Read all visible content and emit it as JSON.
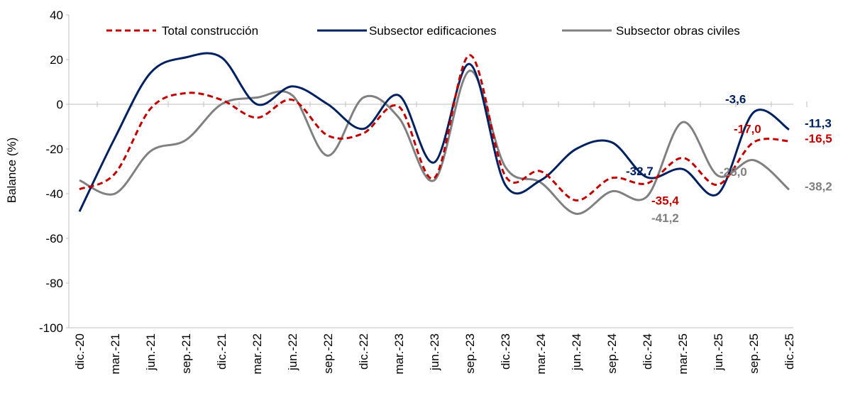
{
  "chart_data": {
    "type": "line",
    "y_label": "Balance (%)",
    "categories": [
      "dic.-20",
      "mar.-21",
      "jun.-21",
      "sep.-21",
      "dic.-21",
      "mar.-22",
      "jun.-22",
      "sep.-22",
      "dic.-22",
      "mar.-23",
      "jun.-23",
      "sep.-23",
      "dic.-23",
      "mar.-24",
      "jun.-24",
      "sep.-24",
      "dic.-24",
      "mar.-25",
      "jun.-25",
      "sep.-25",
      "dic.-25"
    ],
    "ylim": [
      -100,
      40
    ],
    "yticks": [
      -100,
      -80,
      -60,
      -40,
      -20,
      0,
      20,
      40
    ],
    "legend": "top",
    "series": [
      {
        "name": "Total construcción",
        "color": "#c00000",
        "dashed": true,
        "values": [
          -38,
          -31,
          -2,
          5,
          2,
          -6,
          2,
          -14,
          -13,
          -1,
          -33,
          22,
          -32,
          -30,
          -43,
          -33,
          -35.4,
          -24,
          -36,
          -17.0,
          -16.5
        ],
        "value_labels": [
          null,
          null,
          null,
          null,
          null,
          null,
          null,
          null,
          null,
          null,
          null,
          null,
          null,
          null,
          null,
          null,
          "-35,4",
          null,
          null,
          "-17,0",
          "-16,5"
        ]
      },
      {
        "name": "Subsector edificaciones",
        "color": "#002060",
        "dashed": false,
        "values": [
          -48,
          -15,
          14,
          21,
          21,
          0,
          8,
          0,
          -11,
          4,
          -26,
          18,
          -36,
          -34,
          -20,
          -17,
          -32.7,
          -29,
          -40,
          -3.6,
          -11.3
        ],
        "value_labels": [
          null,
          null,
          null,
          null,
          null,
          null,
          null,
          null,
          null,
          null,
          null,
          null,
          null,
          null,
          null,
          null,
          "-32,7",
          null,
          null,
          "-3,6",
          "-11,3"
        ]
      },
      {
        "name": "Subsector obras civiles",
        "color": "#808080",
        "dashed": false,
        "values": [
          -34,
          -40,
          -21,
          -16,
          0,
          3,
          4,
          -23,
          3,
          -6,
          -34,
          15,
          -28,
          -35,
          -49,
          -39,
          -41.2,
          -8,
          -32,
          -25.0,
          -38.2
        ],
        "value_labels": [
          null,
          null,
          null,
          null,
          null,
          null,
          null,
          null,
          null,
          null,
          null,
          null,
          null,
          null,
          null,
          null,
          "-41,2",
          null,
          null,
          "-25,0",
          "-38,2"
        ]
      }
    ]
  }
}
